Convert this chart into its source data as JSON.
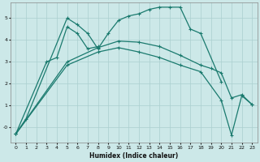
{
  "xlabel": "Humidex (Indice chaleur)",
  "bg_color": "#cce8e8",
  "line_color": "#1a7a6e",
  "grid_color": "#aacfcf",
  "xlim": [
    -0.5,
    23.5
  ],
  "ylim": [
    -0.7,
    5.7
  ],
  "yticks": [
    0,
    1,
    2,
    3,
    4,
    5
  ],
  "ytick_labels": [
    "-0",
    "1",
    "2",
    "3",
    "4",
    "5"
  ],
  "xticks": [
    0,
    1,
    2,
    3,
    4,
    5,
    6,
    7,
    8,
    9,
    10,
    11,
    12,
    13,
    14,
    15,
    16,
    17,
    18,
    19,
    20,
    21,
    22,
    23
  ],
  "line1_x": [
    0,
    1,
    5,
    6,
    7,
    8,
    9,
    10,
    11,
    12,
    13,
    14,
    15,
    16,
    17,
    18,
    20
  ],
  "line1_y": [
    -0.3,
    0.4,
    5.0,
    4.7,
    4.3,
    3.6,
    4.3,
    4.9,
    5.1,
    5.2,
    5.4,
    5.5,
    5.5,
    5.5,
    4.5,
    4.3,
    2.1
  ],
  "line2_x": [
    0,
    3,
    4,
    5,
    6,
    7,
    8
  ],
  "line2_y": [
    -0.3,
    3.0,
    3.2,
    4.6,
    4.3,
    3.6,
    3.7
  ],
  "line3_x": [
    0,
    5,
    8,
    10,
    12,
    14,
    16,
    18,
    19,
    20,
    21,
    22,
    23
  ],
  "line3_y": [
    -0.3,
    3.0,
    3.65,
    3.95,
    3.9,
    3.7,
    3.3,
    2.85,
    2.7,
    2.5,
    1.35,
    1.5,
    1.05
  ],
  "line4_x": [
    0,
    5,
    8,
    10,
    12,
    14,
    16,
    18,
    20,
    21,
    22,
    23
  ],
  "line4_y": [
    -0.3,
    2.85,
    3.45,
    3.65,
    3.45,
    3.2,
    2.85,
    2.55,
    1.25,
    -0.35,
    1.45,
    1.05
  ]
}
